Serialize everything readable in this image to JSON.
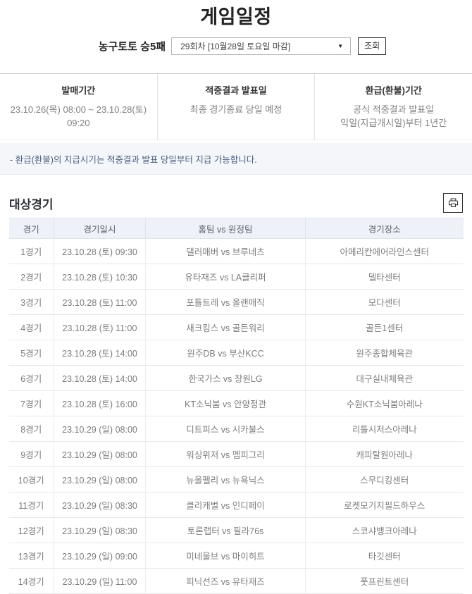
{
  "page": {
    "title": "게임일정"
  },
  "controls": {
    "game_label": "농구토토 승5패",
    "round_value": "29회차 [10월28일 토요일 마감]",
    "dropdown_icon": "▼",
    "search_label": "조회"
  },
  "info": {
    "col1": {
      "title": "발매기간",
      "line1": "23.10.26(목) 08:00 ~ 23.10.28(토) 09:20"
    },
    "col2": {
      "title": "적중결과 발표일",
      "line1": "최종 경기종료 당일 예정"
    },
    "col3": {
      "title": "환급(환불)기간",
      "line1": "공식 적중결과 발표일",
      "line2": "익일(지급개시일)부터 1년간"
    },
    "notice": "- 환급(환불)의 지급시기는 적중결과 발표 당일부터 지급 가능합니다."
  },
  "schedule": {
    "section_title": "대상경기",
    "print_icon": "printer-icon",
    "headers": [
      "경기",
      "경기일시",
      "홈팀 vs 원정팀",
      "경기장소"
    ],
    "rows": [
      [
        "1경기",
        "23.10.28 (토) 09:30",
        "댈러매버 vs 브루네츠",
        "아메리칸에어라인스센터"
      ],
      [
        "2경기",
        "23.10.28 (토) 10:30",
        "유타재즈 vs LA클리퍼",
        "델타센터"
      ],
      [
        "3경기",
        "23.10.28 (토) 11:00",
        "포틀트레 vs 올랜매직",
        "모다센터"
      ],
      [
        "4경기",
        "23.10.28 (토) 11:00",
        "새크킹스 vs 골든워리",
        "골든1센터"
      ],
      [
        "5경기",
        "23.10.28 (토) 14:00",
        "원주DB vs 부산KCC",
        "원주종합체육관"
      ],
      [
        "6경기",
        "23.10.28 (토) 14:00",
        "한국가스 vs 창원LG",
        "대구실내체육관"
      ],
      [
        "7경기",
        "23.10.28 (토) 16:00",
        "KT소닉붐 vs 안양정관",
        "수원KT소닉붐아레나"
      ],
      [
        "8경기",
        "23.10.29 (일) 08:00",
        "디트피스 vs 시카불스",
        "리틀시저스아레나"
      ],
      [
        "9경기",
        "23.10.29 (일) 08:00",
        "워싱위저 vs 멤피그리",
        "캐피탈원아레나"
      ],
      [
        "10경기",
        "23.10.29 (일) 08:00",
        "뉴올펠리 vs 뉴욕닉스",
        "스무디킹센터"
      ],
      [
        "11경기",
        "23.10.29 (일) 08:30",
        "클리캐벌 vs 인디페이",
        "로켓모기지필드하우스"
      ],
      [
        "12경기",
        "23.10.29 (일) 08:30",
        "토론랩터 vs 필라76s",
        "스코샤뱅크아레나"
      ],
      [
        "13경기",
        "23.10.29 (일) 09:00",
        "미네울브 vs 마이히트",
        "타깃센터"
      ],
      [
        "14경기",
        "23.10.29 (일) 11:00",
        "피닉선즈 vs 유타재즈",
        "풋프린트센터"
      ]
    ]
  },
  "colors": {
    "table_header_bg": "#eef1f7",
    "notice_bg": "#f4f6f9",
    "notice_text": "#4a5e7e",
    "cell_text": "#7d7d7d",
    "divider": "#c9c9c9"
  }
}
